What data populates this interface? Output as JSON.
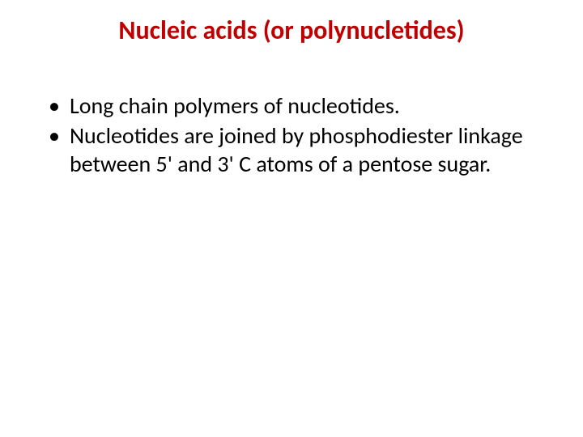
{
  "title": {
    "text": "Nucleic acids (or polynucletides)",
    "color": "#c00000",
    "fontsize": 32
  },
  "body": {
    "color": "#000000",
    "fontsize": 28,
    "bullet_char": "•",
    "items": [
      "Long chain polymers of nucleotides.",
      "Nucleotides are joined by phosphodiester linkage between 5' and 3' C atoms of a pentose sugar."
    ]
  },
  "background_color": "#ffffff"
}
